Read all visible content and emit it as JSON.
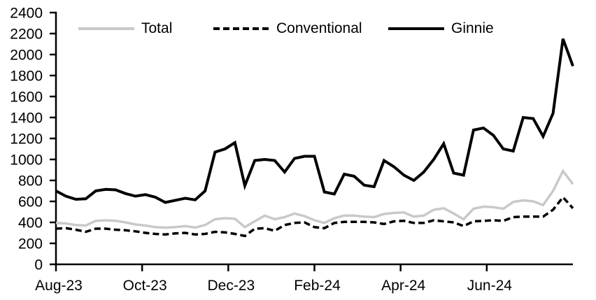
{
  "chart_data": {
    "type": "line",
    "title": "",
    "xlabel": "",
    "ylabel": "",
    "frequency": "weekly",
    "x_range": [
      "Aug-23",
      "Aug-24"
    ],
    "x_tick_labels": [
      "Aug-23",
      "Oct-23",
      "Dec-23",
      "Feb-24",
      "Apr-24",
      "Jun-24"
    ],
    "y_axis": {
      "min": 0,
      "max": 2400,
      "step": 200
    },
    "y_tick_labels": [
      "0",
      "200",
      "400",
      "600",
      "800",
      "1000",
      "1200",
      "1400",
      "1600",
      "1800",
      "2000",
      "2200",
      "2400"
    ],
    "grid": false,
    "legend_position": "top",
    "axis_color": "#000000",
    "background_color": "#ffffff",
    "series": [
      {
        "name": "Total",
        "color": "#c9c9c9",
        "line_style": "solid",
        "values": [
          395,
          390,
          375,
          370,
          415,
          420,
          415,
          400,
          380,
          370,
          355,
          350,
          355,
          365,
          350,
          375,
          430,
          440,
          435,
          355,
          410,
          465,
          430,
          450,
          485,
          460,
          420,
          395,
          440,
          465,
          465,
          455,
          450,
          480,
          490,
          495,
          455,
          465,
          520,
          535,
          485,
          430,
          530,
          550,
          545,
          530,
          595,
          610,
          600,
          565,
          700,
          890,
          765
        ]
      },
      {
        "name": "Conventional",
        "color": "#000000",
        "line_style": "dashed",
        "values": [
          340,
          345,
          330,
          310,
          340,
          340,
          330,
          325,
          315,
          300,
          290,
          285,
          295,
          300,
          285,
          290,
          310,
          305,
          290,
          270,
          340,
          345,
          320,
          375,
          395,
          400,
          355,
          345,
          395,
          405,
          405,
          405,
          400,
          385,
          410,
          415,
          395,
          395,
          420,
          410,
          400,
          365,
          410,
          415,
          420,
          415,
          450,
          455,
          455,
          455,
          520,
          640,
          535
        ]
      },
      {
        "name": "Ginnie",
        "color": "#000000",
        "line_style": "solid",
        "values": [
          700,
          650,
          620,
          625,
          700,
          715,
          710,
          675,
          650,
          665,
          640,
          590,
          610,
          630,
          615,
          700,
          1070,
          1100,
          1160,
          750,
          990,
          1000,
          990,
          880,
          1010,
          1030,
          1030,
          690,
          670,
          860,
          840,
          755,
          740,
          990,
          930,
          850,
          800,
          880,
          1000,
          1150,
          870,
          850,
          1280,
          1300,
          1230,
          1100,
          1080,
          1400,
          1390,
          1220,
          1440,
          2150,
          1890
        ]
      }
    ]
  },
  "legend": {
    "total_label": "Total",
    "conventional_label": "Conventional",
    "ginnie_label": "Ginnie"
  }
}
